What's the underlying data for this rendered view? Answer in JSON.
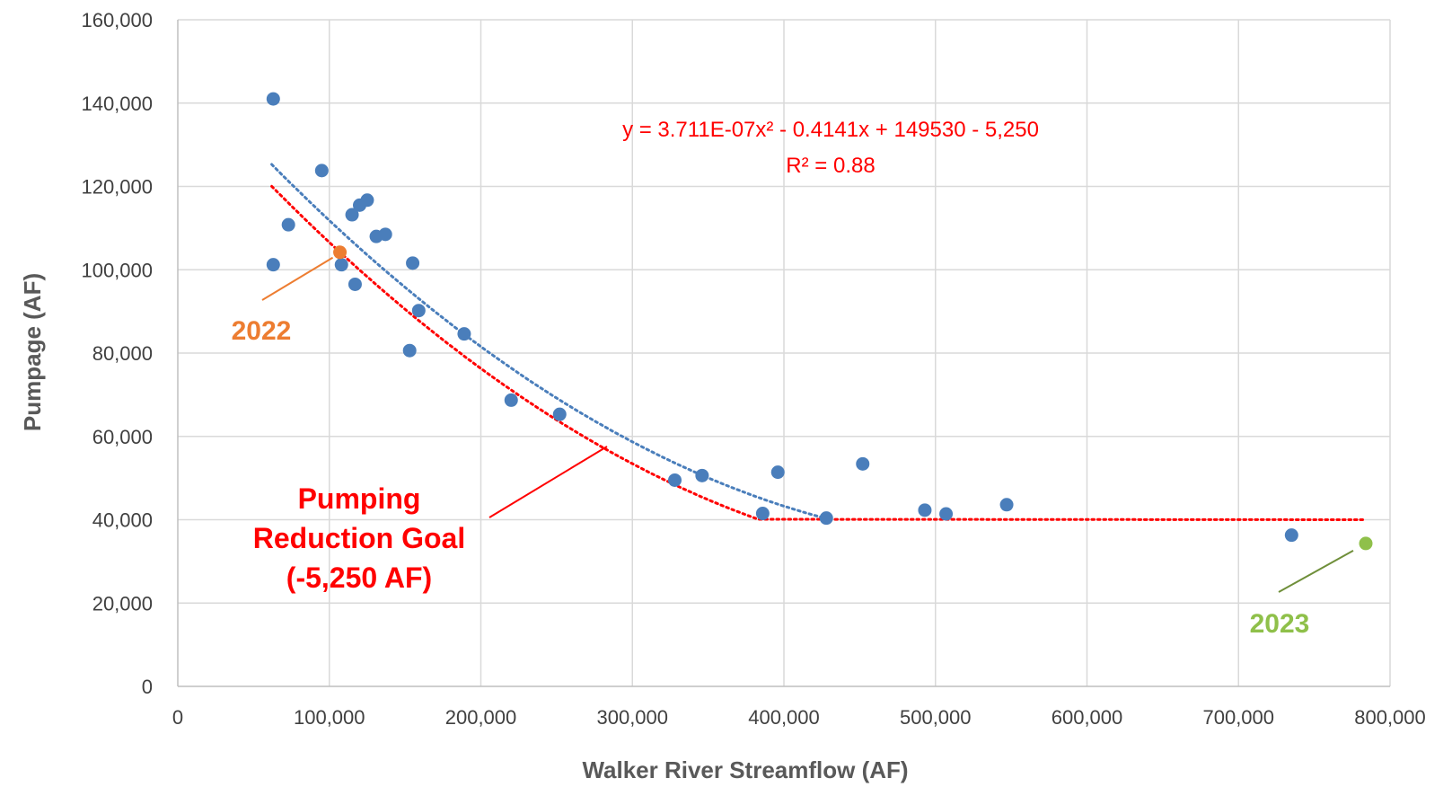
{
  "chart_data": {
    "type": "scatter",
    "xlabel": "Walker River Streamflow (AF)",
    "ylabel": "Pumpage (AF)",
    "xlim": [
      0,
      800000
    ],
    "ylim": [
      0,
      160000
    ],
    "x_ticks": [
      0,
      100000,
      200000,
      300000,
      400000,
      500000,
      600000,
      700000,
      800000
    ],
    "y_ticks": [
      0,
      20000,
      40000,
      60000,
      80000,
      100000,
      120000,
      140000,
      160000
    ],
    "x_tick_labels": [
      "0",
      "100,000",
      "200,000",
      "300,000",
      "400,000",
      "500,000",
      "600,000",
      "700,000",
      "800,000"
    ],
    "y_tick_labels": [
      "0",
      "20,000",
      "40,000",
      "60,000",
      "80,000",
      "100,000",
      "120,000",
      "140,000",
      "160,000"
    ],
    "grid": true,
    "colors": {
      "points": "#4a7ebb",
      "trend": "#4a7ebb",
      "goal": "#ff0000",
      "year_2022": "#ed7d31",
      "year_2023": "#8fc04a",
      "grid": "#d9d9d9",
      "axis": "#bfbfbf",
      "callout_2022_line": "#ed7d31",
      "callout_2023_line": "#6f8f3a",
      "callout_goal_line": "#ff0000"
    },
    "series": [
      {
        "values": [
          [
            63000,
            141000
          ],
          [
            63000,
            101200
          ],
          [
            73000,
            110800
          ],
          [
            95000,
            123800
          ],
          [
            108000,
            101200
          ],
          [
            115000,
            113200
          ],
          [
            117000,
            96500
          ],
          [
            120000,
            115500
          ],
          [
            125000,
            116700
          ],
          [
            131000,
            108000
          ],
          [
            137000,
            108500
          ],
          [
            155000,
            101600
          ],
          [
            153000,
            80600
          ],
          [
            159000,
            90200
          ],
          [
            189000,
            84600
          ],
          [
            220000,
            68700
          ],
          [
            252000,
            65300
          ],
          [
            328000,
            49500
          ],
          [
            346000,
            50600
          ],
          [
            386000,
            41500
          ],
          [
            396000,
            51400
          ],
          [
            428000,
            40400
          ],
          [
            452000,
            53400
          ],
          [
            493000,
            42300
          ],
          [
            507000,
            41400
          ],
          [
            547000,
            43600
          ],
          [
            735000,
            36300
          ]
        ]
      }
    ],
    "highlight_points": [
      {
        "year": "2022",
        "x": 107000,
        "y": 104200
      },
      {
        "year": "2023",
        "x": 784000,
        "y": 34300
      }
    ],
    "trendlines": {
      "blue_dotted": {
        "x_range": [
          62000,
          425000
        ],
        "coeffs": [
          3.711e-07,
          -0.4141,
          149530
        ]
      },
      "red_dotted": {
        "x_range": [
          62000,
          383000
        ],
        "coeffs": [
          3.711e-07,
          -0.4141,
          144280
        ],
        "flat_y": 40000,
        "flat_x_range": [
          383000,
          782000
        ]
      }
    },
    "annotations": {
      "equation": "y = 3.711E-07x² - 0.4141x + 149530 - 5,250",
      "r_squared": "R² = 0.88",
      "label_2022": "2022",
      "label_2023": "2023",
      "goal_line1": "Pumping",
      "goal_line2": "Reduction Goal",
      "goal_line3": "(-5,250 AF)"
    }
  }
}
